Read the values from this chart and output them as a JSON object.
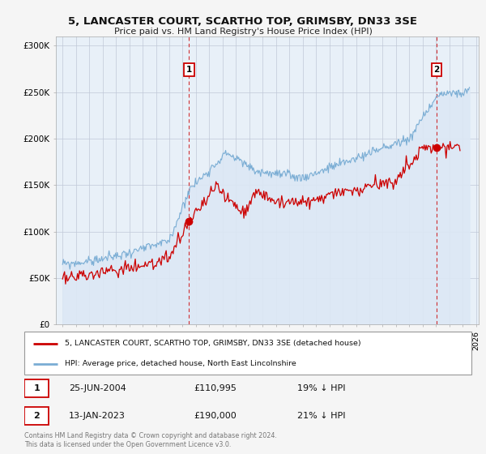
{
  "title1": "5, LANCASTER COURT, SCARTHO TOP, GRIMSBY, DN33 3SE",
  "title2": "Price paid vs. HM Land Registry's House Price Index (HPI)",
  "ylabel_ticks": [
    "£0",
    "£50K",
    "£100K",
    "£150K",
    "£200K",
    "£250K",
    "£300K"
  ],
  "ytick_values": [
    0,
    50000,
    100000,
    150000,
    200000,
    250000,
    300000
  ],
  "ylim": [
    0,
    310000
  ],
  "xlim_start": 1994.5,
  "xlim_end": 2026.2,
  "legend_line1": "5, LANCASTER COURT, SCARTHO TOP, GRIMSBY, DN33 3SE (detached house)",
  "legend_line2": "HPI: Average price, detached house, North East Lincolnshire",
  "marker1_date": "25-JUN-2004",
  "marker1_price": "£110,995",
  "marker1_hpi": "19% ↓ HPI",
  "marker2_date": "13-JAN-2023",
  "marker2_price": "£190,000",
  "marker2_hpi": "21% ↓ HPI",
  "footer": "Contains HM Land Registry data © Crown copyright and database right 2024.\nThis data is licensed under the Open Government Licence v3.0.",
  "red_color": "#cc0000",
  "blue_color": "#7aadd4",
  "blue_fill_color": "#dce8f5",
  "dashed_color": "#cc0000",
  "background_color": "#f5f5f5",
  "plot_bg_color": "#e8f0f8",
  "grid_color": "#c0c8d8"
}
